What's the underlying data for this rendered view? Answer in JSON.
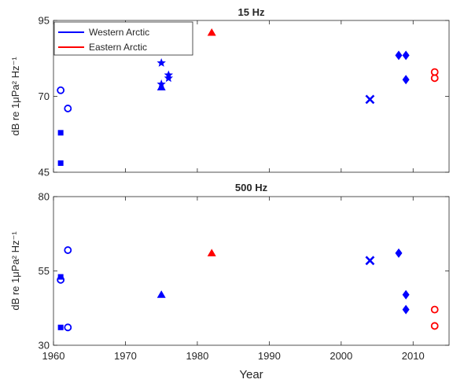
{
  "chart_data": [
    {
      "type": "scatter",
      "title": "15 Hz",
      "ylabel": "dB re 1μPa² Hz⁻¹",
      "xlim": [
        1960,
        2015
      ],
      "ylim": [
        45,
        95
      ],
      "xticks": [
        1960,
        1970,
        1980,
        1990,
        2000,
        2010
      ],
      "yticks": [
        45,
        70,
        95
      ],
      "legend": {
        "placement": "top-left",
        "entries": [
          {
            "name": "Western Arctic",
            "color": "#0000ff"
          },
          {
            "name": "Eastern Arctic",
            "color": "#ff0000"
          }
        ]
      },
      "series": [
        {
          "marker": "circle",
          "color": "#0000ff",
          "points": [
            [
              1961,
              72
            ],
            [
              1962,
              66
            ]
          ]
        },
        {
          "marker": "square",
          "color": "#0000ff",
          "points": [
            [
              1961,
              58
            ],
            [
              1961,
              48
            ]
          ]
        },
        {
          "marker": "star",
          "color": "#0000ff",
          "points": [
            [
              1975,
              81
            ],
            [
              1975,
              74
            ],
            [
              1976,
              77
            ],
            [
              1976,
              76
            ]
          ]
        },
        {
          "marker": "triangle",
          "color": "#0000ff",
          "points": [
            [
              1975,
              73
            ]
          ]
        },
        {
          "marker": "triangle",
          "color": "#ff0000",
          "points": [
            [
              1982,
              91
            ]
          ]
        },
        {
          "marker": "x",
          "color": "#0000ff",
          "points": [
            [
              2004,
              69
            ]
          ]
        },
        {
          "marker": "diamond",
          "color": "#0000ff",
          "points": [
            [
              2008,
              83.5
            ],
            [
              2009,
              83.5
            ],
            [
              2009,
              75.5
            ]
          ]
        },
        {
          "marker": "circle",
          "color": "#ff0000",
          "points": [
            [
              2013,
              78
            ],
            [
              2013,
              76
            ]
          ]
        }
      ]
    },
    {
      "type": "scatter",
      "title": "500 Hz",
      "xlabel": "Year",
      "ylabel": "dB re 1μPa² Hz⁻¹",
      "xlim": [
        1960,
        2015
      ],
      "ylim": [
        30,
        80
      ],
      "xticks": [
        1960,
        1970,
        1980,
        1990,
        2000,
        2010
      ],
      "yticks": [
        30,
        55,
        80
      ],
      "series": [
        {
          "marker": "circle",
          "color": "#0000ff",
          "points": [
            [
              1962,
              62
            ],
            [
              1961,
              52
            ],
            [
              1962,
              36
            ]
          ]
        },
        {
          "marker": "square",
          "color": "#0000ff",
          "points": [
            [
              1961,
              53
            ],
            [
              1961,
              36
            ]
          ]
        },
        {
          "marker": "triangle",
          "color": "#0000ff",
          "points": [
            [
              1975,
              47
            ]
          ]
        },
        {
          "marker": "triangle",
          "color": "#ff0000",
          "points": [
            [
              1982,
              61
            ]
          ]
        },
        {
          "marker": "x",
          "color": "#0000ff",
          "points": [
            [
              2004,
              58.5
            ]
          ]
        },
        {
          "marker": "diamond",
          "color": "#0000ff",
          "points": [
            [
              2008,
              61
            ],
            [
              2009,
              47
            ],
            [
              2009,
              42
            ]
          ]
        },
        {
          "marker": "circle",
          "color": "#ff0000",
          "points": [
            [
              2013,
              42
            ],
            [
              2013,
              36.5
            ]
          ]
        }
      ]
    }
  ]
}
